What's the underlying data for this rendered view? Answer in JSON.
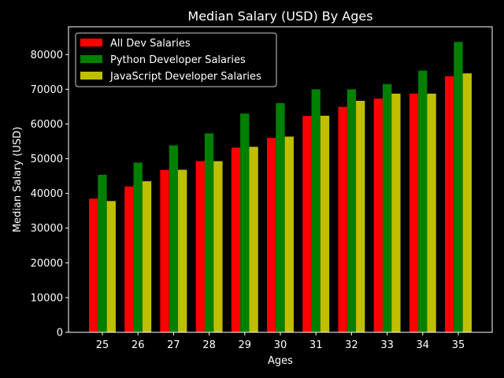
{
  "chart_data": {
    "type": "bar",
    "title": "Median Salary (USD) By Ages",
    "xlabel": "Ages",
    "ylabel": "Median Salary (USD)",
    "categories": [
      "25",
      "26",
      "27",
      "28",
      "29",
      "30",
      "31",
      "32",
      "33",
      "34",
      "35"
    ],
    "ylim": [
      0,
      88000
    ],
    "yticks": [
      0,
      10000,
      20000,
      30000,
      40000,
      50000,
      60000,
      70000,
      80000
    ],
    "grid": false,
    "legend_position": "top-left",
    "series": [
      {
        "name": "All Dev Salaries",
        "color": "#ff0000",
        "values": [
          38496,
          42000,
          46752,
          49320,
          53200,
          56000,
          62316,
          64928,
          67317,
          68748,
          73752
        ]
      },
      {
        "name": "Python Developer Salaries",
        "color": "#008000",
        "values": [
          45372,
          48876,
          53850,
          57287,
          63016,
          65998,
          70003,
          70000,
          71496,
          75370,
          83640
        ]
      },
      {
        "name": "JavaScript Developer Salaries",
        "color": "#bfbf00",
        "values": [
          37810,
          43515,
          46823,
          49293,
          53437,
          56373,
          62375,
          66674,
          68745,
          68746,
          74583
        ]
      }
    ]
  }
}
